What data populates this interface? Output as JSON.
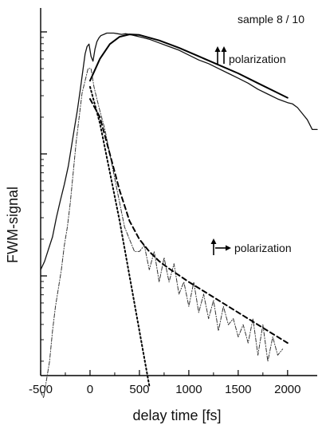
{
  "chart_data": {
    "type": "line",
    "title": "",
    "xlabel": "delay time [fs]",
    "ylabel": "FWM-signal",
    "xlim": [
      -500,
      2300
    ],
    "x_ticks": [
      -500,
      0,
      500,
      1000,
      1500,
      2000
    ],
    "y_scale": "log",
    "y_decades": 3,
    "y_tick_labels_shown": false,
    "annotations": {
      "sample": "sample 8 / 10",
      "parallel": "polarization",
      "perpendicular": "polarization"
    },
    "series": [
      {
        "style": "solid",
        "x": [
          -500,
          -460,
          -420,
          -380,
          -340,
          -300,
          -260,
          -220,
          -190,
          -160,
          -130,
          -100,
          -70,
          -50,
          -30,
          -10,
          10,
          30,
          50,
          70,
          90,
          110,
          140,
          170,
          200,
          240,
          280,
          320,
          360,
          400,
          450,
          500,
          550,
          600,
          700,
          800,
          900,
          1000,
          1100,
          1200,
          1300,
          1400,
          1500,
          1600,
          1700,
          1800,
          1900,
          2000,
          2050,
          2100,
          2150,
          2200,
          2250,
          2300
        ],
        "y": [
          1.05,
          1.12,
          1.22,
          1.32,
          1.48,
          1.62,
          1.75,
          1.9,
          2.05,
          2.2,
          2.35,
          2.52,
          2.7,
          2.82,
          2.88,
          2.9,
          2.8,
          2.76,
          2.86,
          2.92,
          2.95,
          2.97,
          2.98,
          2.99,
          2.99,
          2.99,
          2.985,
          2.98,
          2.985,
          2.98,
          2.97,
          2.96,
          2.95,
          2.94,
          2.91,
          2.88,
          2.85,
          2.81,
          2.77,
          2.74,
          2.7,
          2.66,
          2.62,
          2.58,
          2.53,
          2.49,
          2.45,
          2.42,
          2.41,
          2.38,
          2.33,
          2.28,
          2.2,
          2.2
        ]
      },
      {
        "style": "solid-fit",
        "x": [
          0,
          100,
          200,
          300,
          400,
          500,
          700,
          900,
          1100,
          1300,
          1500,
          1700,
          1900,
          2000
        ],
        "y": [
          2.6,
          2.78,
          2.9,
          2.96,
          2.98,
          2.975,
          2.93,
          2.87,
          2.8,
          2.73,
          2.66,
          2.58,
          2.5,
          2.46
        ]
      },
      {
        "style": "dash-dot",
        "x": [
          -500,
          -470,
          -440,
          -410,
          -380,
          -350,
          -320,
          -290,
          -260,
          -230,
          -200,
          -170,
          -140,
          -110,
          -80,
          -50,
          -20,
          10,
          40,
          70,
          100,
          150,
          200,
          250,
          300,
          350,
          400,
          450,
          500,
          550,
          600,
          650,
          700,
          750,
          800,
          850,
          900,
          950,
          1000,
          1050,
          1100,
          1150,
          1200,
          1250,
          1300,
          1350,
          1400,
          1450,
          1500,
          1550,
          1600,
          1650,
          1700,
          1750,
          1800,
          1850,
          1900,
          1950
        ],
        "y": [
          0.05,
          0.0,
          0.15,
          0.3,
          0.55,
          0.75,
          0.9,
          1.05,
          1.25,
          1.4,
          1.6,
          1.85,
          2.1,
          2.3,
          2.5,
          2.6,
          2.7,
          2.7,
          2.55,
          2.45,
          2.35,
          2.2,
          2.0,
          1.8,
          1.6,
          1.4,
          1.3,
          1.2,
          1.2,
          1.25,
          1.05,
          1.2,
          0.95,
          1.15,
          0.95,
          1.1,
          0.85,
          0.95,
          0.75,
          0.95,
          0.7,
          0.85,
          0.65,
          0.8,
          0.55,
          0.75,
          0.6,
          0.65,
          0.5,
          0.6,
          0.45,
          0.65,
          0.35,
          0.6,
          0.3,
          0.5,
          0.35,
          0.4
        ]
      },
      {
        "style": "dashed-fit",
        "x": [
          0,
          100,
          200,
          300,
          400,
          500,
          600,
          700,
          800,
          1000,
          1200,
          1400,
          1600,
          1800,
          2000
        ],
        "y": [
          2.45,
          2.3,
          2.0,
          1.7,
          1.45,
          1.3,
          1.2,
          1.12,
          1.06,
          0.95,
          0.85,
          0.75,
          0.65,
          0.55,
          0.45
        ]
      },
      {
        "style": "dotted-fit",
        "x": [
          0,
          100,
          200,
          300,
          400,
          500,
          600
        ],
        "y": [
          2.55,
          2.25,
          1.85,
          1.45,
          1.0,
          0.55,
          0.1
        ]
      }
    ]
  }
}
